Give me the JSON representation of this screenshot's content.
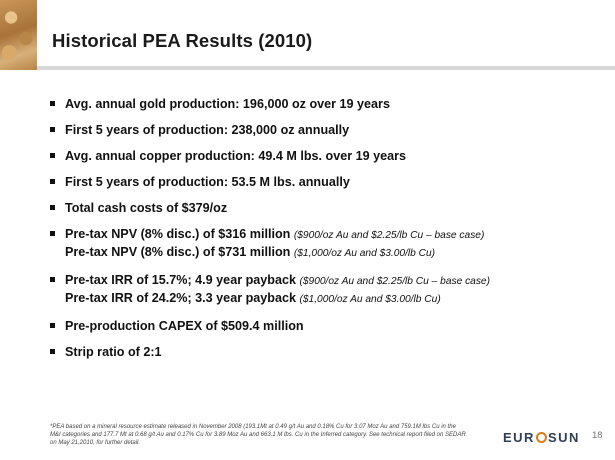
{
  "slide": {
    "title": "Historical PEA Results (2010)",
    "bullets": [
      {
        "lines": [
          {
            "text": "Avg. annual gold production: 196,000 oz over 19 years",
            "note": ""
          }
        ]
      },
      {
        "lines": [
          {
            "text": "First 5 years of production: 238,000 oz annually",
            "note": ""
          }
        ]
      },
      {
        "lines": [
          {
            "text": "Avg. annual copper production: 49.4 M lbs. over 19 years",
            "note": ""
          }
        ]
      },
      {
        "lines": [
          {
            "text": "First 5 years of production: 53.5 M lbs. annually",
            "note": ""
          }
        ]
      },
      {
        "lines": [
          {
            "text": "Total cash costs of $379/oz",
            "note": ""
          }
        ]
      },
      {
        "lines": [
          {
            "text": "Pre-tax NPV (8% disc.) of $316 million",
            "note": "($900/oz Au and $2.25/lb Cu – base case)"
          },
          {
            "text": "Pre-tax NPV (8% disc.) of $731 million",
            "note": "($1,000/oz Au and $3.00/lb Cu)"
          }
        ]
      },
      {
        "lines": [
          {
            "text": "Pre-tax IRR of 15.7%; 4.9 year payback",
            "note": "($900/oz Au and $2.25/lb Cu – base case)"
          },
          {
            "text": "Pre-tax IRR of 24.2%; 3.3 year payback",
            "note": "($1,000/oz Au and $3.00/lb Cu)"
          }
        ]
      },
      {
        "lines": [
          {
            "text": "Pre-production CAPEX of $509.4 million",
            "note": ""
          }
        ]
      },
      {
        "lines": [
          {
            "text": "Strip ratio of 2:1",
            "note": ""
          }
        ]
      }
    ],
    "footnote": "*PEA based on a mineral resource estimate released in November 2008 (193.1Mt at 0.49 g/t Au and 0.18% Cu for 3.07 Moz Au and 759.1M lbs Cu in the M&I categories and 177.7 Mt at 0.68 g/t Au and 0.17% Cu for 3.89 Moz Au and 663.1 M lbs. Cu in the Inferred category. See technical report filed on SEDAR on May 21,2010, for further detail.",
    "page_number": "18"
  },
  "logo": {
    "left": "EUR",
    "right": "SUN"
  },
  "colors": {
    "logo_text": "#2f3e55",
    "logo_sun": "#e07a1a",
    "rule": "#d8d8d8"
  }
}
